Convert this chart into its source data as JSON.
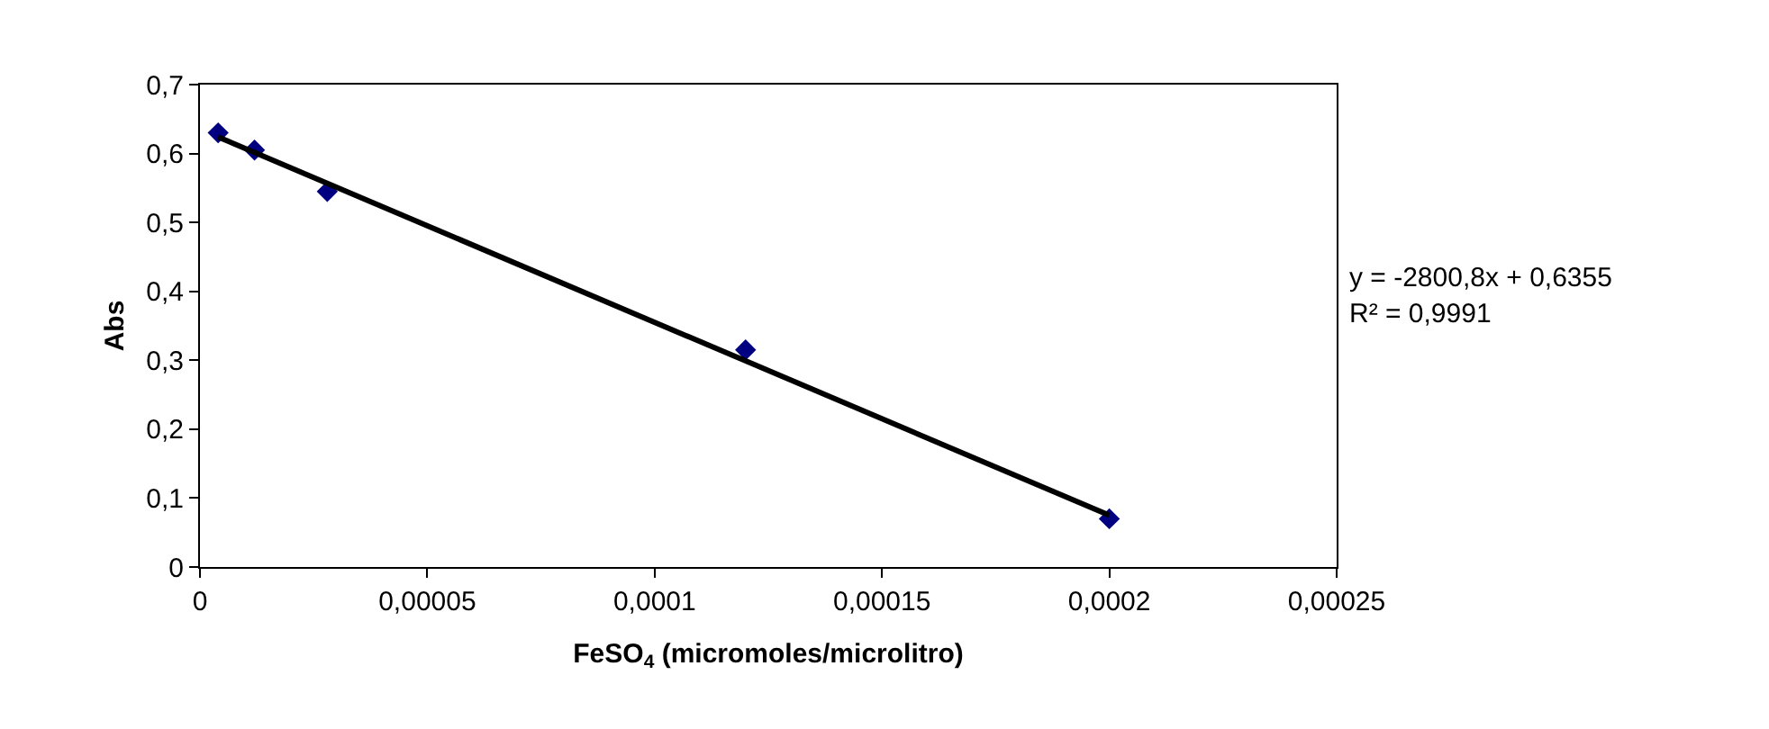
{
  "chart_data": {
    "type": "scatter",
    "xlabel": "FeSO$_{4}$ (micromoles/microlitro)",
    "ylabel": "Abs",
    "series": [
      {
        "color": "#000080",
        "marker": "diamond",
        "x": [
          4e-06,
          1.2e-05,
          2.8e-05,
          0.00012,
          0.0002
        ],
        "values": [
          0.63,
          0.605,
          0.545,
          0.315,
          0.07
        ]
      },
      {
        "type": "line",
        "color": "#000000",
        "line_style": "solid",
        "x": [
          4e-06,
          0.0002
        ],
        "values": [
          0.624,
          0.075
        ]
      }
    ],
    "xlim": [
      0,
      0.00025
    ],
    "xticks": [
      0,
      {
        "value": 5e-05,
        "label": "0,00005"
      },
      {
        "value": 0.0001,
        "label": "0,0001"
      },
      {
        "value": 0.00015,
        "label": "0,00015"
      },
      {
        "value": 0.0002,
        "label": "0,0002"
      },
      {
        "value": 0.00025,
        "label": "0,00025"
      }
    ],
    "ylim": [
      0,
      0.7
    ],
    "yticks": [
      0,
      {
        "value": 0.1,
        "label": "0,1"
      },
      {
        "value": 0.2,
        "label": "0,2"
      },
      {
        "value": 0.3,
        "label": "0,3"
      },
      {
        "value": 0.4,
        "label": "0,4"
      },
      {
        "value": 0.5,
        "label": "0,5"
      },
      {
        "value": 0.6,
        "label": "0,6"
      },
      {
        "value": 0.7,
        "label": "0,7"
      }
    ],
    "annotations": [
      "y = -2800,8x + 0,6355",
      "R² = 0,9991"
    ],
    "legend": false
  }
}
